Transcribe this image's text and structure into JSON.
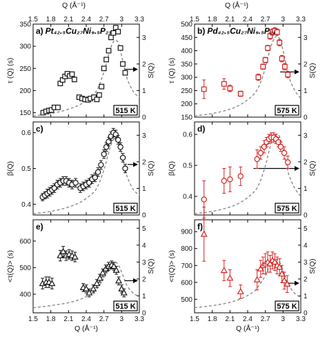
{
  "figure": {
    "top_axis_label": "Q (Å⁻¹)",
    "bottom_axis_label": "Q (Å⁻¹)"
  },
  "colors": {
    "left_series": "#111111",
    "right_series": "#d62020",
    "sq_curve": "#8a8a8a"
  },
  "chart_data": [
    {
      "id": "a",
      "type": "scatter",
      "panel_label": "a)",
      "composition": "Pt₄₂.₅Cu₂₇Ni₉.₅P₂₁",
      "temperature": "515 K",
      "xlabel": "",
      "ylabel": "τ (Q) (s)",
      "y2label": "S(Q)",
      "xlim": [
        1.5,
        3.3
      ],
      "ylim": [
        140,
        350
      ],
      "y2lim": [
        0,
        3.5
      ],
      "x_ticks": [
        1.5,
        1.8,
        2.1,
        2.4,
        2.7,
        3.0,
        3.3
      ],
      "x_tick_labels": [
        "1.5",
        "1.8",
        "2.1",
        "2.4",
        "2.7",
        "3",
        "3.3"
      ],
      "y_ticks": [
        150,
        200,
        250,
        300,
        350
      ],
      "y_tick_labels": [
        "150",
        "200",
        "250",
        "300",
        "350"
      ],
      "y2_ticks": [
        0,
        1,
        2,
        3
      ],
      "y2_tick_labels": [
        "0",
        "1",
        "2",
        "3"
      ],
      "marker": "square",
      "errorbars": false,
      "series": [
        {
          "x": [
            1.67,
            1.72,
            1.77,
            1.81,
            1.86,
            1.92,
            1.96,
            2.0,
            2.04,
            2.08,
            2.12,
            2.16,
            2.2,
            2.28,
            2.33,
            2.38,
            2.43,
            2.47,
            2.53,
            2.58,
            2.62,
            2.66,
            2.7,
            2.74,
            2.78,
            2.82,
            2.86,
            2.9,
            2.94,
            2.98,
            3.02,
            3.06
          ],
          "y": [
            150,
            153,
            155,
            156,
            162,
            162,
            216,
            224,
            232,
            238,
            233,
            237,
            225,
            185,
            182,
            180,
            179,
            182,
            185,
            180,
            190,
            209,
            250,
            270,
            290,
            320,
            330,
            342,
            333,
            296,
            260,
            240
          ]
        }
      ],
      "sq_curve": {
        "x": [
          1.5,
          1.7,
          1.9,
          2.1,
          2.3,
          2.5,
          2.6,
          2.7,
          2.75,
          2.8,
          2.85,
          2.9,
          2.95,
          3.0,
          3.05,
          3.1,
          3.2,
          3.3
        ],
        "y": [
          0.05,
          0.1,
          0.18,
          0.3,
          0.48,
          0.8,
          1.1,
          1.7,
          2.1,
          2.5,
          2.8,
          2.9,
          2.75,
          2.3,
          1.8,
          1.4,
          0.95,
          0.75
        ]
      },
      "arrow": {
        "x": 3.05,
        "y": 1.8,
        "axis": "right"
      }
    },
    {
      "id": "b",
      "type": "scatter",
      "panel_label": "b)",
      "composition": "Pd₄₂.₅Cu₂₇Ni₉.₅P₂₁",
      "temperature": "575 K",
      "xlabel": "",
      "ylabel": "τ (Q) (s)",
      "y2label": "S(Q)",
      "xlim": [
        1.5,
        3.3
      ],
      "ylim": [
        150,
        500
      ],
      "y2lim": [
        0,
        3.5
      ],
      "x_ticks": [
        1.5,
        1.8,
        2.1,
        2.4,
        2.7,
        3.0,
        3.3
      ],
      "x_tick_labels": [
        "1.5",
        "1.8",
        "2.1",
        "2.4",
        "2.7",
        "3",
        "3.3"
      ],
      "y_ticks": [
        150,
        200,
        250,
        300,
        350,
        400,
        450,
        500
      ],
      "y_tick_labels": [
        "150",
        "200",
        "250",
        "300",
        "350",
        "400",
        "450",
        "500"
      ],
      "y2_ticks": [
        0,
        1,
        2,
        3
      ],
      "y2_tick_labels": [
        "0",
        "1",
        "2",
        "3"
      ],
      "marker": "square",
      "errorbars": true,
      "series": [
        {
          "x": [
            1.66,
            2.0,
            2.1,
            2.28,
            2.58,
            2.66,
            2.7,
            2.74,
            2.78,
            2.82,
            2.86,
            2.9,
            2.94,
            2.98,
            3.03,
            3.08
          ],
          "y": [
            255,
            275,
            258,
            238,
            300,
            340,
            365,
            410,
            455,
            470,
            475,
            470,
            430,
            370,
            340,
            310
          ],
          "err": [
            35,
            20,
            12,
            10,
            12,
            10,
            10,
            10,
            12,
            12,
            12,
            12,
            12,
            12,
            12,
            12
          ]
        }
      ],
      "sq_curve": {
        "x": [
          1.5,
          1.7,
          1.9,
          2.1,
          2.3,
          2.5,
          2.6,
          2.7,
          2.75,
          2.8,
          2.85,
          2.9,
          2.95,
          3.0,
          3.05,
          3.1,
          3.2,
          3.3
        ],
        "y": [
          0.05,
          0.1,
          0.18,
          0.3,
          0.5,
          0.85,
          1.2,
          1.85,
          2.3,
          2.7,
          2.95,
          3.05,
          2.9,
          2.5,
          2.0,
          1.5,
          1.0,
          0.7
        ]
      },
      "arrow": {
        "x": 2.95,
        "y": 1.7,
        "axis": "right"
      }
    },
    {
      "id": "c",
      "type": "scatter",
      "panel_label": "c)",
      "composition": "",
      "temperature": "515 K",
      "xlabel": "",
      "ylabel": "β(Q)",
      "y2label": "S(Q)",
      "xlim": [
        1.5,
        3.3
      ],
      "ylim": [
        0.37,
        0.63
      ],
      "y2lim": [
        0,
        3.5
      ],
      "x_ticks": [
        1.5,
        1.8,
        2.1,
        2.4,
        2.7,
        3.0,
        3.3
      ],
      "x_tick_labels": [
        "1.5",
        "1.8",
        "2.1",
        "2.4",
        "2.7",
        "3",
        "3.3"
      ],
      "y_ticks": [
        0.4,
        0.5,
        0.6
      ],
      "y_tick_labels": [
        "0.4",
        "0.5",
        "0.6"
      ],
      "y2_ticks": [
        0,
        1,
        2,
        3
      ],
      "y2_tick_labels": [
        "0",
        "1",
        "2",
        "3"
      ],
      "marker": "circle",
      "errorbars": true,
      "series": [
        {
          "x": [
            1.66,
            1.7,
            1.74,
            1.78,
            1.82,
            1.86,
            1.91,
            1.96,
            2.01,
            2.06,
            2.11,
            2.16,
            2.22,
            2.3,
            2.35,
            2.4,
            2.45,
            2.5,
            2.55,
            2.6,
            2.65,
            2.7,
            2.74,
            2.78,
            2.82,
            2.86,
            2.9,
            2.94,
            2.98,
            3.02,
            3.06
          ],
          "y": [
            0.42,
            0.425,
            0.43,
            0.435,
            0.44,
            0.445,
            0.455,
            0.46,
            0.465,
            0.465,
            0.46,
            0.455,
            0.46,
            0.445,
            0.45,
            0.455,
            0.46,
            0.47,
            0.475,
            0.49,
            0.51,
            0.54,
            0.56,
            0.575,
            0.59,
            0.6,
            0.595,
            0.58,
            0.56,
            0.53,
            0.5
          ],
          "err": [
            0.01,
            0.01,
            0.012,
            0.012,
            0.012,
            0.012,
            0.012,
            0.012,
            0.012,
            0.012,
            0.012,
            0.012,
            0.012,
            0.012,
            0.012,
            0.012,
            0.012,
            0.012,
            0.012,
            0.012,
            0.012,
            0.012,
            0.012,
            0.012,
            0.012,
            0.012,
            0.012,
            0.012,
            0.012,
            0.012,
            0.012
          ]
        }
      ],
      "sq_curve": {
        "x": [
          1.5,
          1.7,
          1.9,
          2.1,
          2.3,
          2.5,
          2.6,
          2.7,
          2.75,
          2.8,
          2.85,
          2.9,
          2.95,
          3.0,
          3.05,
          3.1,
          3.2,
          3.3
        ],
        "y": [
          0.05,
          0.1,
          0.18,
          0.3,
          0.48,
          0.8,
          1.1,
          1.7,
          2.1,
          2.5,
          2.8,
          2.9,
          2.75,
          2.3,
          1.8,
          1.4,
          0.95,
          0.75
        ]
      },
      "arrow": {
        "x": 3.1,
        "y": 1.9,
        "axis": "right"
      }
    },
    {
      "id": "d",
      "type": "scatter",
      "panel_label": "d)",
      "composition": "",
      "temperature": "575 K",
      "xlabel": "",
      "ylabel": "β(Q)",
      "y2label": "S(Q)",
      "xlim": [
        1.5,
        3.3
      ],
      "ylim": [
        0.34,
        0.64
      ],
      "y2lim": [
        0,
        3.5
      ],
      "x_ticks": [
        1.5,
        1.8,
        2.1,
        2.4,
        2.7,
        3.0,
        3.3
      ],
      "x_tick_labels": [
        "1.5",
        "1.8",
        "2.1",
        "2.4",
        "2.7",
        "3",
        "3.3"
      ],
      "y_ticks": [
        0.4,
        0.5,
        0.6
      ],
      "y_tick_labels": [
        "0.4",
        "0.5",
        "0.6"
      ],
      "y2_ticks": [
        0,
        1,
        2,
        3
      ],
      "y2_tick_labels": [
        "0",
        "1",
        "2",
        "3"
      ],
      "marker": "circle",
      "errorbars": true,
      "series": [
        {
          "x": [
            1.66,
            2.0,
            2.1,
            2.28,
            2.56,
            2.62,
            2.68,
            2.72,
            2.76,
            2.8,
            2.84,
            2.88,
            2.92,
            2.96,
            3.02,
            3.08
          ],
          "y": [
            0.39,
            0.45,
            0.455,
            0.465,
            0.52,
            0.54,
            0.56,
            0.575,
            0.585,
            0.59,
            0.59,
            0.585,
            0.575,
            0.56,
            0.54,
            0.51
          ],
          "err": [
            0.06,
            0.04,
            0.04,
            0.03,
            0.03,
            0.02,
            0.02,
            0.015,
            0.015,
            0.015,
            0.015,
            0.015,
            0.015,
            0.015,
            0.02,
            0.02
          ]
        }
      ],
      "sq_curve": {
        "x": [
          1.5,
          1.7,
          1.9,
          2.1,
          2.3,
          2.5,
          2.6,
          2.7,
          2.75,
          2.8,
          2.85,
          2.9,
          2.95,
          3.0,
          3.05,
          3.1,
          3.2,
          3.3
        ],
        "y": [
          0.05,
          0.1,
          0.18,
          0.3,
          0.5,
          0.85,
          1.2,
          1.85,
          2.3,
          2.7,
          2.95,
          3.05,
          2.9,
          2.5,
          2.0,
          1.5,
          1.0,
          0.7
        ]
      },
      "arrow": {
        "x": 2.5,
        "y": 1.75,
        "axis": "right"
      }
    },
    {
      "id": "e",
      "type": "scatter",
      "panel_label": "e)",
      "composition": "",
      "temperature": "515 K",
      "xlabel": "Q (Å⁻¹)",
      "ylabel": "<τ(Q)> (s)",
      "y2label": "S(Q)",
      "xlim": [
        1.5,
        3.3
      ],
      "ylim": [
        330,
        680
      ],
      "y2lim": [
        0,
        5.5
      ],
      "x_ticks": [
        1.5,
        1.8,
        2.1,
        2.4,
        2.7,
        3.0,
        3.3
      ],
      "x_tick_labels": [
        "1.5",
        "1.8",
        "2.1",
        "2.4",
        "2.7",
        "3",
        "3.3"
      ],
      "y_ticks": [
        400,
        500,
        600
      ],
      "y_tick_labels": [
        "400",
        "500",
        "600"
      ],
      "y2_ticks": [
        0,
        1,
        2,
        3,
        4,
        5
      ],
      "y2_tick_labels": [
        "0",
        "1",
        "2",
        "3",
        "4",
        "5"
      ],
      "marker": "triangle",
      "errorbars": true,
      "series": [
        {
          "x": [
            1.66,
            1.72,
            1.77,
            1.82,
            1.96,
            2.01,
            2.06,
            2.11,
            2.16,
            2.21,
            2.35,
            2.4,
            2.45,
            2.52,
            2.58,
            2.63,
            2.68,
            2.73,
            2.78,
            2.83,
            2.87,
            2.91,
            2.95,
            3.0,
            3.04
          ],
          "y": [
            440,
            445,
            445,
            440,
            545,
            560,
            545,
            550,
            545,
            540,
            425,
            420,
            405,
            420,
            440,
            460,
            480,
            495,
            505,
            510,
            505,
            490,
            450,
            420,
            405
          ],
          "err": [
            20,
            20,
            20,
            20,
            20,
            20,
            18,
            18,
            18,
            18,
            15,
            15,
            15,
            15,
            15,
            15,
            15,
            15,
            15,
            15,
            15,
            15,
            15,
            15,
            15
          ]
        }
      ],
      "sq_curve": {
        "x": [
          1.5,
          1.7,
          1.9,
          2.1,
          2.3,
          2.5,
          2.6,
          2.7,
          2.75,
          2.8,
          2.85,
          2.9,
          2.95,
          3.0,
          3.05,
          3.1,
          3.2,
          3.3
        ],
        "y": [
          0.3,
          0.38,
          0.48,
          0.6,
          0.8,
          1.15,
          1.5,
          2.05,
          2.4,
          2.75,
          2.95,
          3.0,
          2.8,
          2.4,
          1.95,
          1.55,
          1.15,
          0.95
        ]
      },
      "arrow": {
        "x": 3.05,
        "y": 1.9,
        "axis": "right"
      }
    },
    {
      "id": "f",
      "type": "scatter",
      "panel_label": "f)",
      "composition": "",
      "temperature": "575 K",
      "xlabel": "Q (Å⁻¹)",
      "ylabel": "<τ(Q)> (s)",
      "y2label": "S(Q)",
      "xlim": [
        1.5,
        3.3
      ],
      "ylim": [
        420,
        970
      ],
      "y2lim": [
        0,
        5.5
      ],
      "x_ticks": [
        1.5,
        1.8,
        2.1,
        2.4,
        2.7,
        3.0,
        3.3
      ],
      "x_tick_labels": [
        "1.5",
        "1.8",
        "2.1",
        "2.4",
        "2.7",
        "3",
        "3.3"
      ],
      "y_ticks": [
        500,
        600,
        700,
        800,
        900
      ],
      "y_tick_labels": [
        "500",
        "600",
        "700",
        "800",
        "900"
      ],
      "y2_ticks": [
        0,
        1,
        2,
        3,
        4,
        5
      ],
      "y2_tick_labels": [
        "0",
        "1",
        "2",
        "3",
        "4",
        "5"
      ],
      "marker": "triangle",
      "errorbars": true,
      "series": [
        {
          "x": [
            1.66,
            2.0,
            2.1,
            2.28,
            2.56,
            2.62,
            2.66,
            2.7,
            2.74,
            2.78,
            2.82,
            2.86,
            2.9,
            2.94,
            2.98,
            3.02,
            3.07
          ],
          "y": [
            885,
            670,
            625,
            545,
            615,
            680,
            700,
            710,
            720,
            710,
            730,
            720,
            700,
            690,
            650,
            610,
            590
          ],
          "err": [
            160,
            60,
            50,
            40,
            60,
            50,
            50,
            60,
            60,
            50,
            50,
            50,
            50,
            50,
            50,
            50,
            50
          ]
        }
      ],
      "sq_curve": {
        "x": [
          1.5,
          1.7,
          1.9,
          2.1,
          2.3,
          2.5,
          2.6,
          2.7,
          2.75,
          2.8,
          2.85,
          2.9,
          2.95,
          3.0,
          3.05,
          3.1,
          3.2,
          3.3
        ],
        "y": [
          0.3,
          0.38,
          0.48,
          0.62,
          0.85,
          1.25,
          1.65,
          2.2,
          2.6,
          2.95,
          3.1,
          3.15,
          2.95,
          2.5,
          2.0,
          1.6,
          1.15,
          0.9
        ]
      },
      "arrow": {
        "x": 3.08,
        "y": 1.75,
        "axis": "right"
      }
    }
  ]
}
